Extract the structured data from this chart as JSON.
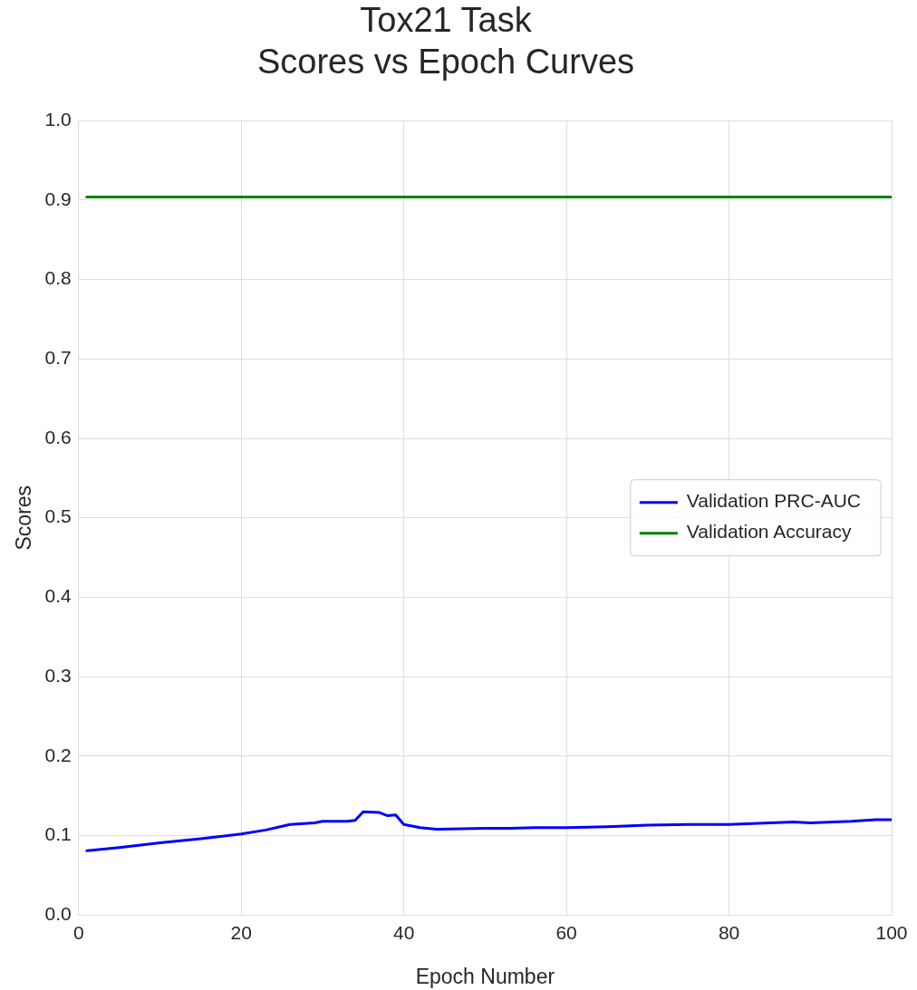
{
  "chart_data": {
    "type": "line",
    "title": "Tox21 Task\nScores vs Epoch Curves",
    "xlabel": "Epoch Number",
    "ylabel": "Scores",
    "xlim": [
      0,
      100
    ],
    "xticks": [
      0,
      20,
      40,
      60,
      80,
      100
    ],
    "ylim": [
      0,
      1
    ],
    "yticks": [
      {
        "value": 0,
        "label": "0.0"
      },
      {
        "value": 0.1,
        "label": "0.1"
      },
      {
        "value": 0.2,
        "label": "0.2"
      },
      {
        "value": 0.3,
        "label": "0.3"
      },
      {
        "value": 0.4,
        "label": "0.4"
      },
      {
        "value": 0.5,
        "label": "0.5"
      },
      {
        "value": 0.6,
        "label": "0.6"
      },
      {
        "value": 0.7,
        "label": "0.7"
      },
      {
        "value": 0.8,
        "label": "0.8"
      },
      {
        "value": 0.9,
        "label": "0.9"
      },
      {
        "value": 1,
        "label": "1.0"
      }
    ],
    "grid": true,
    "legend": "center right",
    "marker": "none",
    "line_style": "solid",
    "series": [
      {
        "name": "Validation PRC-AUC",
        "color": "#0000ff",
        "x": [
          1,
          5,
          10,
          15,
          20,
          23,
          26,
          29,
          30,
          33,
          34,
          35,
          37,
          38,
          39,
          40,
          42,
          44,
          50,
          53,
          56,
          60,
          65,
          70,
          75,
          80,
          85,
          88,
          90,
          95,
          98,
          100
        ],
        "values": [
          0.081,
          0.085,
          0.091,
          0.096,
          0.102,
          0.107,
          0.114,
          0.116,
          0.118,
          0.118,
          0.119,
          0.13,
          0.129,
          0.125,
          0.126,
          0.114,
          0.11,
          0.108,
          0.109,
          0.109,
          0.11,
          0.11,
          0.111,
          0.113,
          0.114,
          0.114,
          0.116,
          0.117,
          0.116,
          0.118,
          0.12,
          0.12
        ]
      },
      {
        "name": "Validation Accuracy",
        "color": "#008000",
        "x": [
          1,
          100
        ],
        "values": [
          0.904,
          0.904
        ]
      }
    ]
  }
}
